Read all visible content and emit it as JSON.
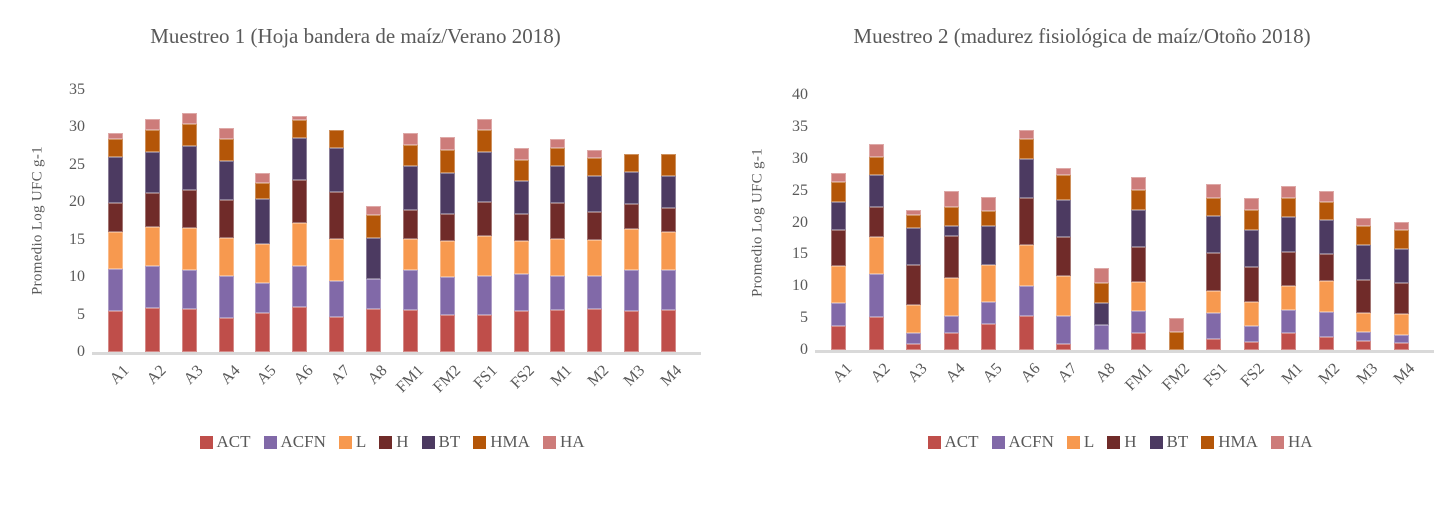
{
  "colors": {
    "text": "#595959",
    "axis_line": "#d9d9d9",
    "background": "#ffffff"
  },
  "chart_data": [
    {
      "type": "bar",
      "subtype": "stacked",
      "title": "Muestreo 1 (Hoja bandera de maíz/Verano 2018)",
      "ylabel": "Promedio Log UFC g-1",
      "xlabel": "",
      "ylim": [
        0,
        35
      ],
      "ytick_step": 5,
      "grid": false,
      "legend_position": "bottom",
      "categories": [
        "A1",
        "A2",
        "A3",
        "A4",
        "A5",
        "A6",
        "A7",
        "A8",
        "FM1",
        "FM2",
        "FS1",
        "FS2",
        "M1",
        "M2",
        "M3",
        "M4"
      ],
      "series": [
        {
          "name": "ACT",
          "color": "#bf4e4a",
          "values": [
            5.5,
            5.9,
            5.7,
            4.5,
            5.2,
            6.0,
            4.7,
            5.8,
            5.6,
            4.9,
            5.0,
            5.5,
            5.6,
            5.7,
            5.5,
            5.6
          ]
        },
        {
          "name": "ACFN",
          "color": "#8169a8",
          "values": [
            5.6,
            5.6,
            5.2,
            5.6,
            4.0,
            5.5,
            4.8,
            4.0,
            5.3,
            5.1,
            5.2,
            4.9,
            4.6,
            4.4,
            5.5,
            5.3
          ]
        },
        {
          "name": "L",
          "color": "#f7994f",
          "values": [
            4.9,
            5.2,
            5.7,
            5.2,
            5.2,
            5.8,
            5.6,
            0,
            4.2,
            4.8,
            5.3,
            4.5,
            4.9,
            4.9,
            5.4,
            5.2
          ]
        },
        {
          "name": "H",
          "color": "#702b29",
          "values": [
            3.9,
            4.5,
            5.0,
            5.0,
            0,
            5.7,
            6.3,
            0,
            3.9,
            3.6,
            4.5,
            3.5,
            4.8,
            3.7,
            3.4,
            3.2
          ]
        },
        {
          "name": "BT",
          "color": "#4c3a61",
          "values": [
            6.1,
            5.5,
            5.9,
            5.2,
            6.0,
            5.6,
            5.9,
            5.5,
            5.9,
            5.5,
            6.7,
            4.4,
            5.0,
            4.8,
            4.2,
            4.2
          ]
        },
        {
          "name": "HMA",
          "color": "#b45608",
          "values": [
            2.4,
            3.0,
            2.9,
            2.9,
            2.2,
            2.4,
            2.3,
            3.0,
            2.8,
            3.1,
            3.0,
            2.8,
            2.3,
            2.4,
            2.4,
            2.9
          ]
        },
        {
          "name": "HA",
          "color": "#cd7c7a",
          "values": [
            0.8,
            1.5,
            1.5,
            1.5,
            1.3,
            0.6,
            0,
            1.2,
            1.5,
            1.7,
            1.5,
            1.7,
            1.2,
            1.1,
            0,
            0
          ]
        }
      ]
    },
    {
      "type": "bar",
      "subtype": "stacked",
      "title": "Muestreo 2 (madurez fisiológica de maíz/Otoño 2018)",
      "ylabel": "Promedio Log UFC g-1",
      "xlabel": "",
      "ylim": [
        0,
        40
      ],
      "ytick_step": 5,
      "grid": false,
      "legend_position": "bottom",
      "categories": [
        "A1",
        "A2",
        "A3",
        "A4",
        "A5",
        "A6",
        "A7",
        "A8",
        "FM1",
        "FM2",
        "FS1",
        "FS2",
        "M1",
        "M2",
        "M3",
        "M4"
      ],
      "series": [
        {
          "name": "ACT",
          "color": "#bf4e4a",
          "values": [
            3.7,
            5.2,
            0.9,
            2.7,
            4.1,
            5.4,
            0.9,
            0,
            2.6,
            0,
            1.8,
            1.2,
            2.7,
            2.0,
            1.4,
            1.1
          ]
        },
        {
          "name": "ACFN",
          "color": "#8169a8",
          "values": [
            3.7,
            6.8,
            1.7,
            2.7,
            3.5,
            4.6,
            4.4,
            4.0,
            3.5,
            0,
            4.0,
            2.5,
            3.5,
            3.9,
            1.5,
            1.3
          ]
        },
        {
          "name": "L",
          "color": "#f7994f",
          "values": [
            5.8,
            5.8,
            4.5,
            5.9,
            5.8,
            6.4,
            6.3,
            0,
            4.5,
            0,
            3.5,
            3.8,
            3.9,
            4.9,
            2.9,
            3.2
          ]
        },
        {
          "name": "H",
          "color": "#702b29",
          "values": [
            5.7,
            4.7,
            6.3,
            6.6,
            0,
            7.5,
            6.1,
            0,
            5.6,
            0,
            5.9,
            5.6,
            5.2,
            4.3,
            5.2,
            4.9
          ]
        },
        {
          "name": "BT",
          "color": "#4c3a61",
          "values": [
            4.4,
            5.0,
            5.7,
            1.6,
            6.1,
            6.1,
            5.9,
            3.4,
            5.8,
            0,
            5.9,
            5.7,
            5.6,
            5.3,
            5.4,
            5.3
          ]
        },
        {
          "name": "HMA",
          "color": "#b45608",
          "values": [
            3.0,
            2.8,
            2.1,
            3.0,
            2.3,
            3.1,
            3.8,
            3.1,
            3.1,
            2.8,
            2.7,
            3.2,
            2.9,
            2.8,
            3.0,
            3.1
          ]
        },
        {
          "name": "HA",
          "color": "#cd7c7a",
          "values": [
            1.4,
            2.0,
            0.8,
            2.4,
            2.2,
            1.4,
            1.1,
            2.4,
            2.1,
            2.2,
            2.2,
            1.8,
            2.0,
            1.8,
            1.3,
            1.2
          ]
        }
      ]
    }
  ]
}
